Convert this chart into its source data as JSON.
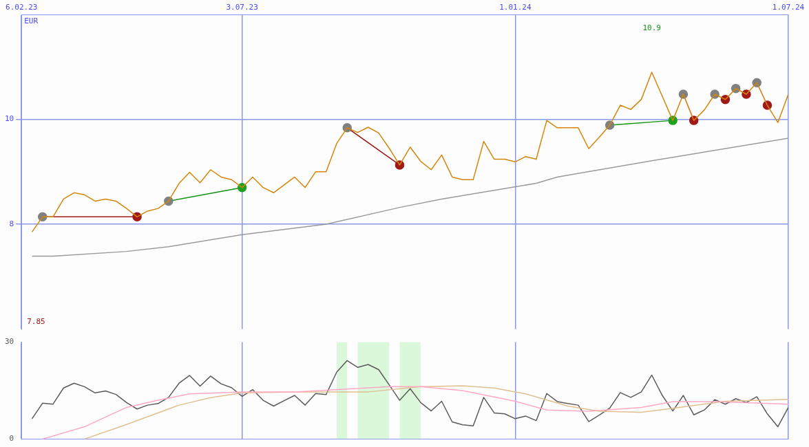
{
  "chart_data": [
    {
      "type": "line",
      "ylabel": "EUR",
      "xlim": [
        "2023-02-06",
        "2024-07-01"
      ],
      "ylim": [
        6,
        12
      ],
      "yticks": [
        8,
        10
      ],
      "xticks": [
        {
          "value": "2023-02-06",
          "label": "6.02.23"
        },
        {
          "value": "2023-07-03",
          "label": "3.07.23"
        },
        {
          "value": "2024-01-01",
          "label": "1.01.24"
        },
        {
          "value": "2024-07-01",
          "label": "1.07.24"
        }
      ],
      "grid": true,
      "annotations": [
        "7.85",
        "10.9"
      ],
      "x": [
        "2023-02-13",
        "2023-02-20",
        "2023-02-27",
        "2023-03-06",
        "2023-03-13",
        "2023-03-20",
        "2023-03-27",
        "2023-04-03",
        "2023-04-10",
        "2023-04-17",
        "2023-04-24",
        "2023-05-01",
        "2023-05-08",
        "2023-05-15",
        "2023-05-22",
        "2023-05-29",
        "2023-06-05",
        "2023-06-12",
        "2023-06-19",
        "2023-06-26",
        "2023-07-03",
        "2023-07-10",
        "2023-07-17",
        "2023-07-24",
        "2023-07-31",
        "2023-08-07",
        "2023-08-14",
        "2023-08-21",
        "2023-08-28",
        "2023-09-04",
        "2023-09-11",
        "2023-09-18",
        "2023-09-25",
        "2023-10-02",
        "2023-10-09",
        "2023-10-16",
        "2023-10-23",
        "2023-10-30",
        "2023-11-06",
        "2023-11-13",
        "2023-11-20",
        "2023-11-27",
        "2023-12-04",
        "2023-12-11",
        "2023-12-18",
        "2023-12-25",
        "2024-01-01",
        "2024-01-08",
        "2024-01-15",
        "2024-01-22",
        "2024-01-29",
        "2024-02-05",
        "2024-02-12",
        "2024-02-19",
        "2024-02-26",
        "2024-03-04",
        "2024-03-11",
        "2024-03-18",
        "2024-03-25",
        "2024-04-01",
        "2024-04-08",
        "2024-04-15",
        "2024-04-22",
        "2024-04-29",
        "2024-05-06",
        "2024-05-13",
        "2024-05-20",
        "2024-05-27",
        "2024-06-03",
        "2024-06-10",
        "2024-06-17",
        "2024-06-24",
        "2024-07-01"
      ],
      "series": [
        {
          "color": "#d4860a",
          "marker": "none",
          "values": [
            7.85,
            8.14,
            8.14,
            8.48,
            8.6,
            8.56,
            8.44,
            8.48,
            8.44,
            8.3,
            8.14,
            8.25,
            8.3,
            8.44,
            8.78,
            8.99,
            8.79,
            9.04,
            8.9,
            8.85,
            8.7,
            8.9,
            8.7,
            8.6,
            8.75,
            8.9,
            8.7,
            9.0,
            9.0,
            9.54,
            9.84,
            9.75,
            9.85,
            9.74,
            9.45,
            9.13,
            9.47,
            9.2,
            9.04,
            9.32,
            8.9,
            8.85,
            8.85,
            9.58,
            9.24,
            9.24,
            9.19,
            9.29,
            9.24,
            9.98,
            9.84,
            9.84,
            9.84,
            9.44,
            9.66,
            9.89,
            10.27,
            10.19,
            10.38,
            10.9,
            10.44,
            9.98,
            10.48,
            9.98,
            10.18,
            10.48,
            10.38,
            10.59,
            10.48,
            10.7,
            10.27,
            9.94,
            10.48
          ]
        },
        {
          "color": "#9a9a9a",
          "marker": "none",
          "x": [
            "2023-02-13",
            "2023-02-27",
            "2023-04-17",
            "2023-05-15",
            "2023-07-03",
            "2023-08-28",
            "2023-10-16",
            "2023-11-13",
            "2024-01-15",
            "2024-01-29",
            "2024-04-01",
            "2024-07-01"
          ],
          "values": [
            7.39,
            7.39,
            7.48,
            7.57,
            7.8,
            8.0,
            8.32,
            8.48,
            8.78,
            8.9,
            9.21,
            9.64
          ]
        },
        {
          "color": "#a01818",
          "marker": "circle",
          "colors": [
            "#808080",
            "#a01818"
          ],
          "x": [
            "2023-02-20",
            "2023-04-24"
          ],
          "values": [
            8.14,
            8.14
          ]
        },
        {
          "color": "#109010",
          "marker": "circle",
          "colors": [
            "#808080",
            "#20a020"
          ],
          "x": [
            "2023-05-15",
            "2023-07-03"
          ],
          "values": [
            8.44,
            8.7
          ]
        },
        {
          "color": "#a01818",
          "marker": "circle",
          "colors": [
            "#808080",
            "#a01818"
          ],
          "x": [
            "2023-09-11",
            "2023-10-16"
          ],
          "values": [
            9.84,
            9.13
          ]
        },
        {
          "color": "#109010",
          "marker": "circle",
          "colors": [
            "#808080",
            "#20a020"
          ],
          "x": [
            "2024-03-04",
            "2024-04-15"
          ],
          "values": [
            9.89,
            9.98
          ]
        },
        {
          "color": "#ffb0c8",
          "marker": "circle",
          "colors": [
            "#808080",
            "#a01818"
          ],
          "x": [
            "2024-04-22",
            "2024-04-29"
          ],
          "values": [
            10.48,
            9.98
          ]
        },
        {
          "color": "#ffb0c8",
          "marker": "circle",
          "colors": [
            "#808080",
            "#a01818"
          ],
          "x": [
            "2024-05-13",
            "2024-05-20"
          ],
          "values": [
            10.48,
            10.38
          ]
        },
        {
          "color": "#ffb0c8",
          "marker": "circle",
          "colors": [
            "#808080",
            "#a01818"
          ],
          "x": [
            "2024-05-27",
            "2024-06-03"
          ],
          "values": [
            10.59,
            10.48
          ]
        },
        {
          "color": "#ffb0c8",
          "marker": "circle",
          "colors": [
            "#808080",
            "#a01818"
          ],
          "x": [
            "2024-06-10",
            "2024-06-17"
          ],
          "values": [
            10.7,
            10.27
          ]
        }
      ]
    },
    {
      "type": "line",
      "xlim": [
        "2023-02-06",
        "2024-07-01"
      ],
      "ylim": [
        0,
        30
      ],
      "yticks": [
        0,
        30
      ],
      "xticks": [
        {
          "value": "2023-02-06",
          "label": null
        },
        {
          "value": "2023-07-03",
          "label": null
        },
        {
          "value": "2024-01-01",
          "label": null
        },
        {
          "value": "2024-07-01",
          "label": null
        }
      ],
      "grid": "x",
      "tick_labels": "y",
      "bands": [
        {
          "axis": "x",
          "from": "2023-09-04",
          "to": "2023-09-11",
          "color": "#90f090"
        },
        {
          "axis": "x",
          "from": "2023-09-18",
          "to": "2023-10-09",
          "color": "#90f090"
        },
        {
          "axis": "x",
          "from": "2023-10-16",
          "to": "2023-10-30",
          "color": "#90f090"
        }
      ],
      "x": [
        "2023-02-13",
        "2023-02-20",
        "2023-02-27",
        "2023-03-06",
        "2023-03-13",
        "2023-03-20",
        "2023-03-27",
        "2023-04-03",
        "2023-04-10",
        "2023-04-17",
        "2023-04-24",
        "2023-05-01",
        "2023-05-08",
        "2023-05-15",
        "2023-05-22",
        "2023-05-29",
        "2023-06-05",
        "2023-06-12",
        "2023-06-19",
        "2023-06-26",
        "2023-07-03",
        "2023-07-10",
        "2023-07-17",
        "2023-07-24",
        "2023-07-31",
        "2023-08-07",
        "2023-08-14",
        "2023-08-21",
        "2023-08-28",
        "2023-09-04",
        "2023-09-11",
        "2023-09-18",
        "2023-09-25",
        "2023-10-02",
        "2023-10-09",
        "2023-10-16",
        "2023-10-23",
        "2023-10-30",
        "2023-11-06",
        "2023-11-13",
        "2023-11-20",
        "2023-11-27",
        "2023-12-04",
        "2023-12-11",
        "2023-12-18",
        "2023-12-25",
        "2024-01-01",
        "2024-01-08",
        "2024-01-15",
        "2024-01-22",
        "2024-01-29",
        "2024-02-05",
        "2024-02-12",
        "2024-02-19",
        "2024-02-26",
        "2024-03-04",
        "2024-03-11",
        "2024-03-18",
        "2024-03-25",
        "2024-04-01",
        "2024-04-08",
        "2024-04-15",
        "2024-04-22",
        "2024-04-29",
        "2024-05-06",
        "2024-05-13",
        "2024-05-20",
        "2024-05-27",
        "2024-06-03",
        "2024-06-10",
        "2024-06-17",
        "2024-06-24",
        "2024-07-01"
      ],
      "series": [
        {
          "color": "#ffa8c4",
          "marker": "none",
          "x": [
            "2023-02-20",
            "2023-03-20",
            "2023-04-17",
            "2023-05-08",
            "2023-05-29",
            "2023-07-03",
            "2023-08-07",
            "2023-09-11",
            "2023-10-09",
            "2023-10-30",
            "2023-11-27",
            "2024-01-01",
            "2024-01-22",
            "2024-02-19",
            "2024-03-25",
            "2024-04-15",
            "2024-05-13",
            "2024-07-01"
          ],
          "values": [
            0,
            3.8,
            9.8,
            12.0,
            14.0,
            14.6,
            14.6,
            15.5,
            16.2,
            16.2,
            15.0,
            11.7,
            9.0,
            8.6,
            9.8,
            11.6,
            11.6,
            10.8
          ]
        },
        {
          "color": "#e0c090",
          "marker": "none",
          "x": [
            "2023-03-20",
            "2023-04-17",
            "2023-05-22",
            "2023-06-12",
            "2023-07-03",
            "2023-08-07",
            "2023-09-25",
            "2023-10-30",
            "2023-11-27",
            "2023-12-18",
            "2024-01-08",
            "2024-02-05",
            "2024-02-26",
            "2024-03-25",
            "2024-04-15",
            "2024-05-20",
            "2024-07-01"
          ],
          "values": [
            0,
            4.5,
            10.5,
            12.8,
            14.3,
            14.6,
            14.6,
            16.2,
            16.5,
            15.8,
            14.0,
            10.2,
            8.6,
            8.3,
            9.5,
            11.7,
            12.3
          ]
        },
        {
          "color": "#5a5a5a",
          "marker": "none",
          "values": [
            6.3,
            11.1,
            10.8,
            15.8,
            17.3,
            16.2,
            14.3,
            14.9,
            13.8,
            11.3,
            9.3,
            10.5,
            11.0,
            12.9,
            17.3,
            19.7,
            16.4,
            19.5,
            17.1,
            15.9,
            13.2,
            15.3,
            12.0,
            10.2,
            11.9,
            13.5,
            10.5,
            14.1,
            13.8,
            20.7,
            24.3,
            22.2,
            23.1,
            21.5,
            16.8,
            12.0,
            15.6,
            11.3,
            8.7,
            11.7,
            5.3,
            4.4,
            4.1,
            12.9,
            8.1,
            7.8,
            6.3,
            7.1,
            5.7,
            14.1,
            11.6,
            11.0,
            10.5,
            5.4,
            7.4,
            9.6,
            14.4,
            12.9,
            14.6,
            19.8,
            13.5,
            8.7,
            13.5,
            7.5,
            9.0,
            12.2,
            10.8,
            12.5,
            11.3,
            13.1,
            7.8,
            3.8,
            9.8
          ]
        }
      ]
    }
  ]
}
